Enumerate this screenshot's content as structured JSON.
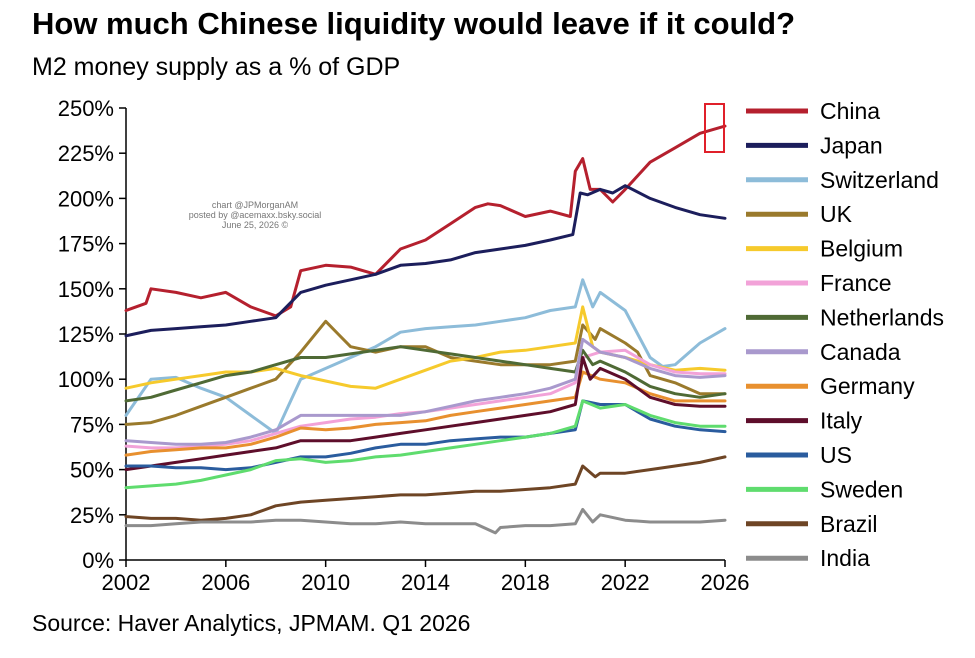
{
  "header": {
    "title": "How much Chinese liquidity would leave if it could?",
    "subtitle": "M2 money supply as a % of GDP"
  },
  "footer": {
    "source": "Source: Haver Analytics, JPMAM. Q1 2026"
  },
  "watermark": [
    "chart @JPMorganAM",
    "posted by @acemaxx.bsky.social",
    "June 25, 2026 ©"
  ],
  "chart_data": {
    "type": "line",
    "title": "How much Chinese liquidity would leave if it could?",
    "subtitle": "M2 money supply as a % of GDP",
    "xlim": [
      2002,
      2026
    ],
    "ylim": [
      0,
      250
    ],
    "x_ticks": [
      "2002",
      "2006",
      "2010",
      "2014",
      "2018",
      "2022",
      "2026"
    ],
    "y_ticks": [
      "0%",
      "25%",
      "50%",
      "75%",
      "100%",
      "125%",
      "150%",
      "175%",
      "200%",
      "225%",
      "250%"
    ],
    "grid": false,
    "legend_position": "right",
    "annotation": "red box highlighting latest China value",
    "series": [
      {
        "name": "China",
        "color": "#b5202e",
        "x": [
          2002,
          2002.8,
          2003,
          2004,
          2005,
          2006,
          2007,
          2008,
          2008.6,
          2009,
          2010,
          2011,
          2012,
          2013,
          2014,
          2015,
          2016,
          2016.5,
          2017,
          2018,
          2019,
          2019.8,
          2020,
          2020.3,
          2020.6,
          2021,
          2021.5,
          2022,
          2023,
          2024,
          2025,
          2025.5,
          2026
        ],
        "y": [
          138,
          142,
          150,
          148,
          145,
          148,
          140,
          135,
          140,
          160,
          163,
          162,
          158,
          172,
          177,
          186,
          195,
          197,
          196,
          190,
          193,
          190,
          215,
          222,
          205,
          205,
          198,
          205,
          220,
          228,
          236,
          238,
          240
        ]
      },
      {
        "name": "Japan",
        "color": "#1c1e5c",
        "x": [
          2002,
          2003,
          2004,
          2005,
          2006,
          2007,
          2008,
          2009,
          2010,
          2011,
          2012,
          2013,
          2014,
          2015,
          2016,
          2017,
          2018,
          2019,
          2019.9,
          2020.2,
          2020.5,
          2021,
          2021.5,
          2022,
          2023,
          2024,
          2025,
          2026
        ],
        "y": [
          124,
          127,
          128,
          129,
          130,
          132,
          134,
          148,
          152,
          155,
          158,
          163,
          164,
          166,
          170,
          172,
          174,
          177,
          180,
          203,
          202,
          205,
          203,
          207,
          200,
          195,
          191,
          189
        ]
      },
      {
        "name": "Switzerland",
        "color": "#8dbcd9",
        "x": [
          2002,
          2002.5,
          2003,
          2004,
          2005,
          2006,
          2007,
          2008,
          2008.5,
          2009,
          2010,
          2011,
          2012,
          2013,
          2014,
          2015,
          2016,
          2017,
          2018,
          2019,
          2020,
          2020.3,
          2020.7,
          2021,
          2022,
          2023,
          2023.5,
          2024,
          2025,
          2026
        ],
        "y": [
          80,
          90,
          100,
          101,
          95,
          90,
          80,
          70,
          85,
          100,
          106,
          112,
          118,
          126,
          128,
          129,
          130,
          132,
          134,
          138,
          140,
          155,
          140,
          148,
          138,
          112,
          107,
          108,
          120,
          128
        ]
      },
      {
        "name": "UK",
        "color": "#9a7a2c",
        "x": [
          2002,
          2003,
          2004,
          2005,
          2006,
          2007,
          2008,
          2009,
          2010,
          2010.5,
          2011,
          2012,
          2013,
          2014,
          2015,
          2016,
          2017,
          2018,
          2019,
          2020,
          2020.3,
          2020.8,
          2021,
          2022,
          2022.5,
          2023,
          2024,
          2025,
          2026
        ],
        "y": [
          75,
          76,
          80,
          85,
          90,
          95,
          100,
          115,
          132,
          125,
          118,
          115,
          118,
          118,
          112,
          110,
          108,
          108,
          108,
          110,
          130,
          122,
          128,
          120,
          115,
          102,
          98,
          92,
          92
        ]
      },
      {
        "name": "Belgium",
        "color": "#f6ca2c",
        "x": [
          2002,
          2003,
          2004,
          2005,
          2006,
          2007,
          2008,
          2009,
          2010,
          2011,
          2012,
          2013,
          2014,
          2015,
          2016,
          2017,
          2018,
          2019,
          2020,
          2020.3,
          2020.7,
          2021,
          2022,
          2023,
          2024,
          2025,
          2026
        ],
        "y": [
          95,
          98,
          100,
          102,
          104,
          104,
          106,
          102,
          99,
          96,
          95,
          100,
          105,
          110,
          112,
          115,
          116,
          118,
          120,
          140,
          118,
          115,
          112,
          108,
          105,
          106,
          105
        ]
      },
      {
        "name": "France",
        "color": "#f2a2d8",
        "x": [
          2002,
          2003,
          2004,
          2005,
          2006,
          2007,
          2008,
          2009,
          2010,
          2011,
          2012,
          2013,
          2014,
          2015,
          2016,
          2017,
          2018,
          2019,
          2020,
          2020.3,
          2021,
          2022,
          2023,
          2024,
          2025,
          2026
        ],
        "y": [
          63,
          62,
          62,
          63,
          64,
          66,
          70,
          74,
          76,
          78,
          79,
          81,
          82,
          84,
          86,
          88,
          90,
          92,
          98,
          112,
          115,
          116,
          108,
          104,
          103,
          103
        ]
      },
      {
        "name": "Netherlands",
        "color": "#4f6a35",
        "x": [
          2002,
          2003,
          2004,
          2005,
          2006,
          2007,
          2008,
          2009,
          2010,
          2011,
          2012,
          2013,
          2014,
          2015,
          2016,
          2017,
          2018,
          2019,
          2020,
          2020.3,
          2020.7,
          2021,
          2022,
          2023,
          2024,
          2025,
          2026
        ],
        "y": [
          88,
          90,
          94,
          98,
          102,
          104,
          108,
          112,
          112,
          114,
          116,
          118,
          116,
          114,
          112,
          110,
          108,
          106,
          104,
          116,
          108,
          110,
          104,
          96,
          92,
          90,
          92
        ]
      },
      {
        "name": "Canada",
        "color": "#a999cd",
        "x": [
          2002,
          2003,
          2004,
          2005,
          2006,
          2007,
          2008,
          2009,
          2010,
          2011,
          2012,
          2013,
          2014,
          2015,
          2016,
          2017,
          2018,
          2019,
          2020,
          2020.3,
          2021,
          2022,
          2023,
          2024,
          2025,
          2026
        ],
        "y": [
          66,
          65,
          64,
          64,
          65,
          68,
          72,
          80,
          80,
          80,
          80,
          80,
          82,
          85,
          88,
          90,
          92,
          95,
          100,
          122,
          115,
          112,
          106,
          102,
          101,
          102
        ]
      },
      {
        "name": "Germany",
        "color": "#e8902f",
        "x": [
          2002,
          2003,
          2004,
          2005,
          2006,
          2007,
          2008,
          2009,
          2010,
          2011,
          2012,
          2013,
          2014,
          2015,
          2016,
          2017,
          2018,
          2019,
          2020,
          2020.3,
          2021,
          2022,
          2023,
          2024,
          2025,
          2026
        ],
        "y": [
          58,
          60,
          61,
          62,
          62,
          64,
          68,
          73,
          72,
          73,
          75,
          76,
          77,
          80,
          82,
          84,
          86,
          88,
          90,
          104,
          100,
          98,
          92,
          88,
          88,
          88
        ]
      },
      {
        "name": "Italy",
        "color": "#5e0e2b",
        "x": [
          2002,
          2003,
          2004,
          2005,
          2006,
          2007,
          2008,
          2009,
          2010,
          2011,
          2012,
          2013,
          2014,
          2015,
          2016,
          2017,
          2018,
          2019,
          2020,
          2020.3,
          2020.6,
          2021,
          2022,
          2023,
          2024,
          2025,
          2026
        ],
        "y": [
          50,
          52,
          54,
          56,
          58,
          60,
          62,
          66,
          66,
          66,
          68,
          70,
          72,
          74,
          76,
          78,
          80,
          82,
          86,
          112,
          100,
          106,
          100,
          90,
          86,
          85,
          85
        ]
      },
      {
        "name": "US",
        "color": "#2a5c9e",
        "x": [
          2002,
          2003,
          2004,
          2005,
          2006,
          2007,
          2008,
          2009,
          2010,
          2011,
          2012,
          2013,
          2014,
          2015,
          2016,
          2017,
          2018,
          2019,
          2020,
          2020.3,
          2021,
          2022,
          2023,
          2024,
          2025,
          2026
        ],
        "y": [
          52,
          52,
          51,
          51,
          50,
          51,
          54,
          57,
          57,
          59,
          62,
          64,
          64,
          66,
          67,
          68,
          68,
          70,
          72,
          88,
          86,
          86,
          78,
          74,
          72,
          71
        ]
      },
      {
        "name": "Sweden",
        "color": "#5fdc6e",
        "x": [
          2002,
          2003,
          2004,
          2005,
          2006,
          2007,
          2008,
          2009,
          2010,
          2011,
          2012,
          2013,
          2014,
          2015,
          2016,
          2017,
          2018,
          2019,
          2020,
          2020.3,
          2021,
          2022,
          2023,
          2024,
          2025,
          2026
        ],
        "y": [
          40,
          41,
          42,
          44,
          47,
          50,
          55,
          56,
          54,
          55,
          57,
          58,
          60,
          62,
          64,
          66,
          68,
          70,
          74,
          88,
          84,
          86,
          80,
          76,
          74,
          74
        ]
      },
      {
        "name": "Brazil",
        "color": "#6e4525",
        "x": [
          2002,
          2003,
          2004,
          2005,
          2006,
          2007,
          2008,
          2009,
          2010,
          2011,
          2012,
          2013,
          2014,
          2015,
          2016,
          2017,
          2018,
          2019,
          2020,
          2020.3,
          2020.8,
          2021,
          2022,
          2023,
          2024,
          2025,
          2026
        ],
        "y": [
          24,
          23,
          23,
          22,
          23,
          25,
          30,
          32,
          33,
          34,
          35,
          36,
          36,
          37,
          38,
          38,
          39,
          40,
          42,
          52,
          46,
          48,
          48,
          50,
          52,
          54,
          57
        ]
      },
      {
        "name": "India",
        "color": "#8c8c8c",
        "x": [
          2002,
          2003,
          2004,
          2005,
          2006,
          2007,
          2008,
          2009,
          2010,
          2011,
          2012,
          2013,
          2014,
          2015,
          2016,
          2016.8,
          2017,
          2018,
          2019,
          2020,
          2020.3,
          2020.7,
          2021,
          2022,
          2023,
          2024,
          2025,
          2026
        ],
        "y": [
          19,
          19,
          20,
          21,
          21,
          21,
          22,
          22,
          21,
          20,
          20,
          21,
          20,
          20,
          20,
          15,
          18,
          19,
          19,
          20,
          28,
          21,
          25,
          22,
          21,
          21,
          21,
          22
        ]
      }
    ]
  }
}
